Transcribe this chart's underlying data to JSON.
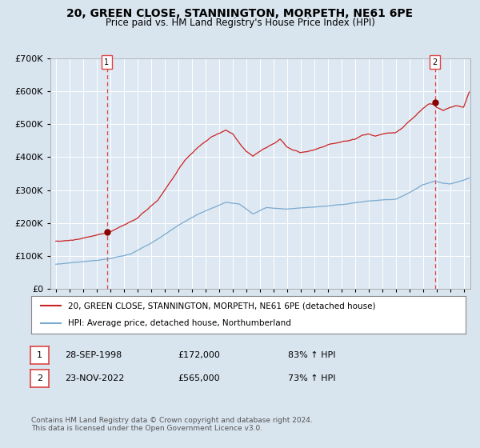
{
  "title": "20, GREEN CLOSE, STANNINGTON, MORPETH, NE61 6PE",
  "subtitle": "Price paid vs. HM Land Registry's House Price Index (HPI)",
  "footer": "Contains HM Land Registry data © Crown copyright and database right 2024.\nThis data is licensed under the Open Government Licence v3.0.",
  "legend_line1": "20, GREEN CLOSE, STANNINGTON, MORPETH, NE61 6PE (detached house)",
  "legend_line2": "HPI: Average price, detached house, Northumberland",
  "sale1_date": "28-SEP-1998",
  "sale1_price": "£172,000",
  "sale1_hpi": "83% ↑ HPI",
  "sale2_date": "23-NOV-2022",
  "sale2_price": "£565,000",
  "sale2_hpi": "73% ↑ HPI",
  "hpi_color": "#7aaacf",
  "price_color": "#cc2222",
  "marker_color": "#880000",
  "vline_color": "#dd4444",
  "bg_color": "#d8e4ee",
  "plot_bg": "#dde8f2",
  "grid_color": "#ffffff",
  "ylim": [
    0,
    700000
  ],
  "yticks": [
    0,
    100000,
    200000,
    300000,
    400000,
    500000,
    600000,
    700000
  ],
  "sale1_year": 1998.75,
  "sale2_year": 2022.89
}
